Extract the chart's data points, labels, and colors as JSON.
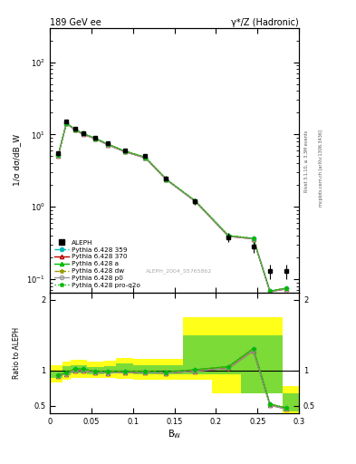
{
  "title_left": "189 GeV ee",
  "title_right": "γ*/Z (Hadronic)",
  "ylabel_main": "1/σ dσ/dB_W",
  "ylabel_ratio": "Ratio to ALEPH",
  "xlabel": "B$_\\mathrm{W}$",
  "watermark": "ALEPH_2004_S5765862",
  "right_label_top": "Rivet 3.1.10, ≥ 3.3M events",
  "right_label_bot": "mcplots.cern.ch [arXiv:1306.3436]",
  "bw_centers": [
    0.01,
    0.02,
    0.03,
    0.04,
    0.055,
    0.07,
    0.09,
    0.115,
    0.14,
    0.175,
    0.215,
    0.245,
    0.265,
    0.285
  ],
  "aleph_y": [
    5.5,
    15.0,
    12.0,
    10.5,
    9.0,
    7.5,
    6.0,
    5.0,
    2.5,
    1.2,
    0.38,
    0.28,
    0.13,
    0.13
  ],
  "aleph_yerr_lo": [
    0.4,
    0.8,
    0.7,
    0.6,
    0.5,
    0.4,
    0.35,
    0.28,
    0.18,
    0.12,
    0.05,
    0.05,
    0.03,
    0.03
  ],
  "aleph_yerr_hi": [
    0.4,
    0.8,
    0.7,
    0.6,
    0.5,
    0.4,
    0.35,
    0.28,
    0.18,
    0.12,
    0.05,
    0.05,
    0.03,
    0.03
  ],
  "mc359_y": [
    5.15,
    14.5,
    11.8,
    10.3,
    8.85,
    7.35,
    5.92,
    4.85,
    2.42,
    1.21,
    0.4,
    0.365,
    0.068,
    0.075
  ],
  "mc370_y": [
    5.1,
    14.3,
    11.6,
    10.1,
    8.7,
    7.2,
    5.8,
    4.75,
    2.38,
    1.19,
    0.39,
    0.36,
    0.067,
    0.073
  ],
  "mca_y": [
    5.15,
    14.5,
    11.8,
    10.3,
    8.85,
    7.35,
    5.92,
    4.85,
    2.42,
    1.21,
    0.4,
    0.365,
    0.068,
    0.075
  ],
  "mcdw_y": [
    5.15,
    14.5,
    11.8,
    10.3,
    8.85,
    7.35,
    5.92,
    4.85,
    2.42,
    1.21,
    0.4,
    0.365,
    0.068,
    0.075
  ],
  "mcp0_y": [
    5.1,
    14.3,
    11.6,
    10.1,
    8.7,
    7.2,
    5.8,
    4.75,
    2.38,
    1.19,
    0.39,
    0.36,
    0.067,
    0.073
  ],
  "mcproq2o_y": [
    5.15,
    14.5,
    11.8,
    10.3,
    8.85,
    7.35,
    5.92,
    4.85,
    2.42,
    1.21,
    0.4,
    0.365,
    0.068,
    0.075
  ],
  "ratio359_y": [
    0.935,
    0.965,
    1.02,
    1.02,
    0.985,
    0.985,
    0.988,
    0.988,
    0.978,
    1.01,
    1.055,
    1.31,
    0.525,
    0.47
  ],
  "ratio370_y": [
    0.925,
    0.952,
    1.0,
    1.0,
    0.97,
    0.965,
    0.97,
    0.97,
    0.962,
    0.99,
    1.03,
    1.28,
    0.51,
    0.455
  ],
  "ratioa_y": [
    0.935,
    0.968,
    1.02,
    1.02,
    0.985,
    0.985,
    0.988,
    0.988,
    0.978,
    1.01,
    1.055,
    1.31,
    0.525,
    0.47
  ],
  "ratiodw_y": [
    0.935,
    0.965,
    1.02,
    1.02,
    0.985,
    0.985,
    0.988,
    0.988,
    0.978,
    1.01,
    1.055,
    1.31,
    0.525,
    0.47
  ],
  "ratiop0_y": [
    0.925,
    0.952,
    1.0,
    1.0,
    0.97,
    0.965,
    0.97,
    0.97,
    0.962,
    0.99,
    1.03,
    1.28,
    0.51,
    0.455
  ],
  "ratioproq2o_y": [
    0.935,
    0.968,
    1.02,
    1.02,
    0.985,
    0.985,
    0.988,
    0.988,
    0.978,
    1.01,
    1.055,
    1.31,
    0.525,
    0.47
  ],
  "band_edges": [
    0.0,
    0.015,
    0.025,
    0.035,
    0.045,
    0.065,
    0.08,
    0.1,
    0.13,
    0.16,
    0.195,
    0.23,
    0.26,
    0.28,
    0.3
  ],
  "band_green_lo": [
    0.9,
    0.93,
    0.96,
    0.96,
    0.95,
    0.96,
    0.96,
    0.95,
    0.95,
    0.95,
    0.94,
    0.68,
    0.68,
    0.42,
    0.42
  ],
  "band_green_hi": [
    1.0,
    1.06,
    1.08,
    1.08,
    1.05,
    1.06,
    1.1,
    1.08,
    1.08,
    1.5,
    1.5,
    1.5,
    1.5,
    0.68,
    0.68
  ],
  "band_yellow_lo": [
    0.83,
    0.87,
    0.9,
    0.9,
    0.89,
    0.89,
    0.88,
    0.87,
    0.87,
    0.87,
    0.68,
    0.68,
    0.68,
    0.38,
    0.38
  ],
  "band_yellow_hi": [
    1.08,
    1.13,
    1.15,
    1.15,
    1.13,
    1.14,
    1.18,
    1.16,
    1.16,
    1.75,
    1.75,
    1.75,
    1.75,
    0.78,
    0.78
  ],
  "color_359": "#00BBBB",
  "color_370": "#BB0000",
  "color_a": "#00BB00",
  "color_dw": "#999900",
  "color_p0": "#999999",
  "color_proq2o": "#00BB00",
  "ylim_main": [
    0.065,
    300
  ],
  "ylim_ratio": [
    0.4,
    2.1
  ],
  "xlim": [
    0.0,
    0.3
  ],
  "yticks_main": [
    0.1,
    1,
    10,
    100
  ],
  "yticks_ratio": [
    0.5,
    1.0,
    2.0
  ],
  "xticks": [
    0,
    0.05,
    0.1,
    0.15,
    0.2,
    0.25,
    0.3
  ]
}
